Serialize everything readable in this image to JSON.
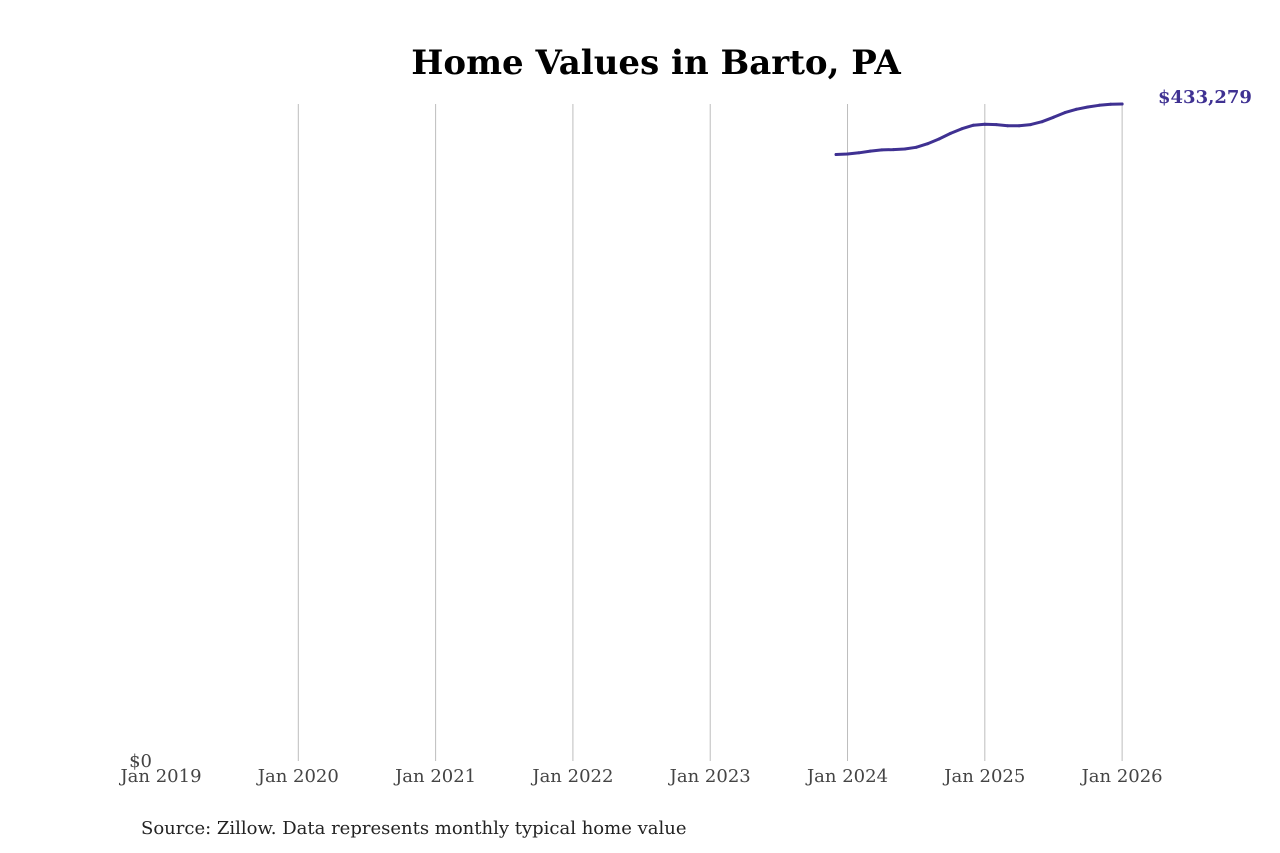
{
  "chart_data": {
    "type": "line",
    "title": "Home Values in Barto, PA",
    "xlabel": "",
    "ylabel": "",
    "x_ticks": [
      "Jan 2019",
      "Jan 2020",
      "Jan 2021",
      "Jan 2022",
      "Jan 2023",
      "Jan 2024",
      "Jan 2025",
      "Jan 2026"
    ],
    "y_ticks": [
      {
        "value": 0,
        "label": "$0"
      }
    ],
    "xlim": [
      "2019-01",
      "2026-03"
    ],
    "ylim": [
      0,
      433279
    ],
    "grid": "vertical",
    "series": [
      {
        "color": "#3f3192",
        "points": [
          {
            "x": "2023-12",
            "y": 400000
          },
          {
            "x": "2024-01",
            "y": 400300
          },
          {
            "x": "2024-02",
            "y": 401100
          },
          {
            "x": "2024-03",
            "y": 402200
          },
          {
            "x": "2024-04",
            "y": 403000
          },
          {
            "x": "2024-05",
            "y": 403200
          },
          {
            "x": "2024-06",
            "y": 403600
          },
          {
            "x": "2024-07",
            "y": 404700
          },
          {
            "x": "2024-08",
            "y": 407100
          },
          {
            "x": "2024-09",
            "y": 410200
          },
          {
            "x": "2024-10",
            "y": 413900
          },
          {
            "x": "2024-11",
            "y": 417000
          },
          {
            "x": "2024-12",
            "y": 419300
          },
          {
            "x": "2025-01",
            "y": 419900
          },
          {
            "x": "2025-02",
            "y": 419700
          },
          {
            "x": "2025-03",
            "y": 419000
          },
          {
            "x": "2025-04",
            "y": 419000
          },
          {
            "x": "2025-05",
            "y": 419700
          },
          {
            "x": "2025-06",
            "y": 421600
          },
          {
            "x": "2025-07",
            "y": 424500
          },
          {
            "x": "2025-08",
            "y": 427600
          },
          {
            "x": "2025-09",
            "y": 429800
          },
          {
            "x": "2025-10",
            "y": 431300
          },
          {
            "x": "2025-11",
            "y": 432400
          },
          {
            "x": "2025-12",
            "y": 433100
          },
          {
            "x": "2026-01",
            "y": 433279
          }
        ]
      }
    ],
    "end_label": "$433,279",
    "source": "Source: Zillow. Data represents monthly typical home value"
  }
}
